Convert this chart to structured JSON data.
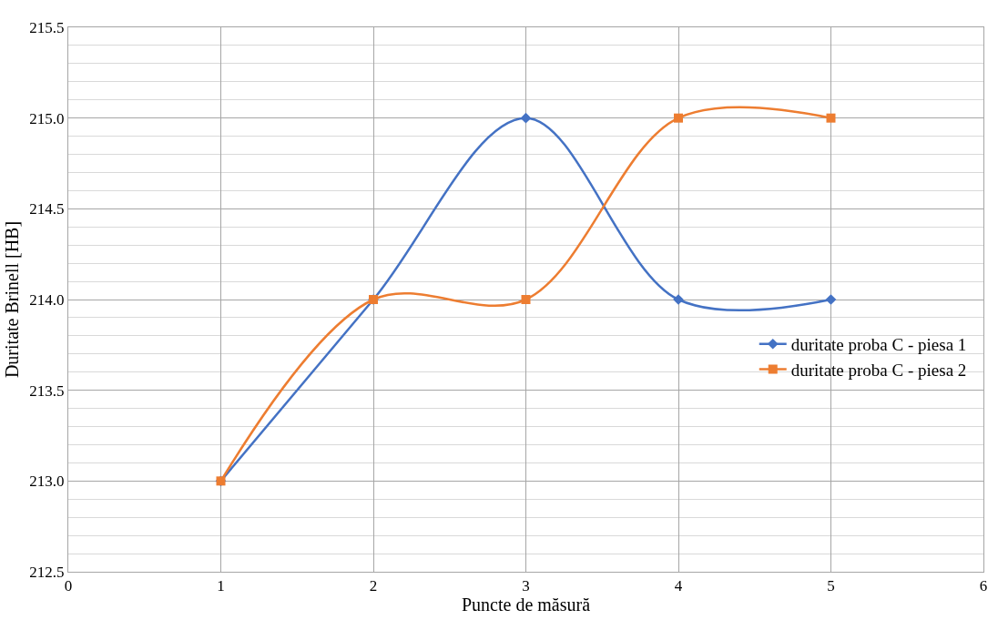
{
  "chart_data": {
    "type": "line",
    "xlabel": "Puncte de măsură",
    "ylabel": "Duritate Brinell [HB]",
    "x": [
      1,
      2,
      3,
      4,
      5
    ],
    "series": [
      {
        "name": "duritate proba C - piesa 1",
        "color": "#4472c4",
        "marker": "diamond",
        "values": [
          213,
          214,
          215,
          214,
          214
        ]
      },
      {
        "name": "duritate proba C - piesa 2",
        "color": "#ed7d31",
        "marker": "square",
        "values": [
          213,
          214,
          214,
          215,
          215
        ]
      }
    ],
    "xlim": [
      0,
      6
    ],
    "xticks": [
      0,
      1,
      2,
      3,
      4,
      5,
      6
    ],
    "ylim": [
      212.5,
      215.5
    ],
    "yticks": [
      {
        "value": 212.5,
        "label": "212.5"
      },
      {
        "value": 213,
        "label": "213.0"
      },
      {
        "value": 213.5,
        "label": "213.5"
      },
      {
        "value": 214,
        "label": "214.0"
      },
      {
        "value": 214.5,
        "label": "214.5"
      },
      {
        "value": 215,
        "label": "215.0"
      },
      {
        "value": 215.5,
        "label": "215.5"
      }
    ],
    "grid": true,
    "legend": "right",
    "line_style": "solid"
  }
}
